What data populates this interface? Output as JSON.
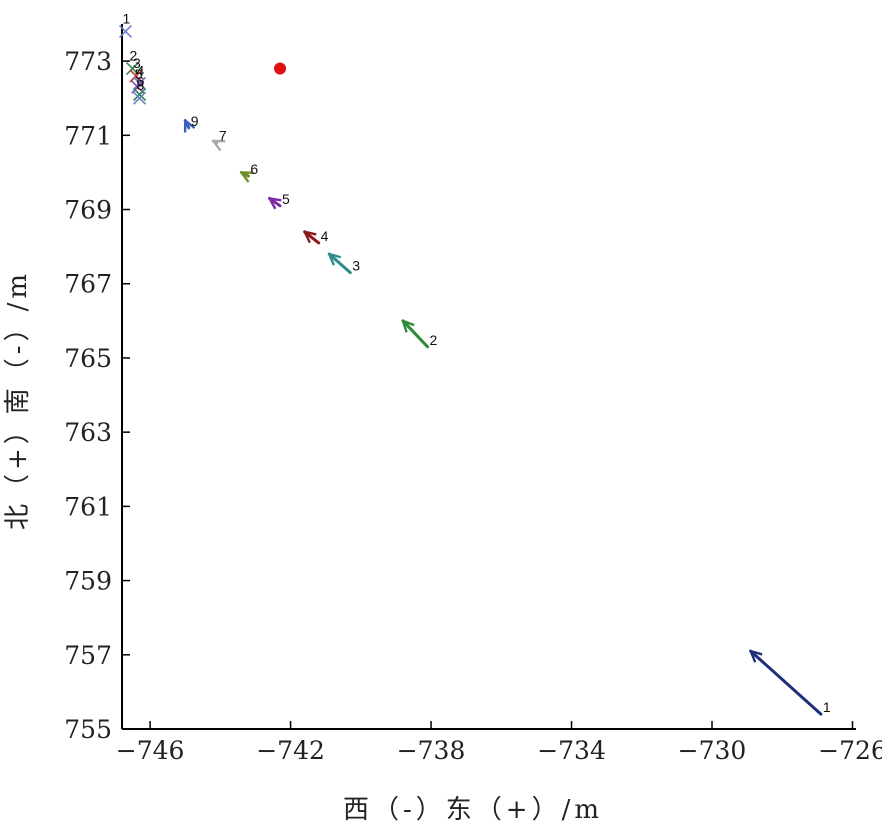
{
  "chart_data": {
    "type": "scatter",
    "xlabel": "西（-）东（+）/m",
    "ylabel": "北（+）南（-）/m",
    "xlim": [
      -746.8,
      -725.9
    ],
    "ylim": [
      755,
      774
    ],
    "xticks": [
      -746,
      -742,
      -738,
      -734,
      -730,
      -726
    ],
    "yticks": [
      755,
      757,
      759,
      761,
      763,
      765,
      767,
      769,
      771,
      773
    ],
    "grid": false,
    "reference_point": {
      "x": -742.3,
      "y": 772.8,
      "color": "#e01010"
    },
    "markers": [
      {
        "label": "1",
        "x": -746.7,
        "y": 773.8,
        "color": "#6f7fc8"
      },
      {
        "label": "2",
        "x": -746.5,
        "y": 772.8,
        "color": "#2e8b57"
      },
      {
        "label": "3",
        "x": -746.4,
        "y": 772.6,
        "color": "#c0392b"
      },
      {
        "label": "4",
        "x": -746.3,
        "y": 772.4,
        "color": "#6f7fc8"
      },
      {
        "label": "5",
        "x": -746.35,
        "y": 772.3,
        "color": "#8e44ad"
      },
      {
        "label": "6",
        "x": -746.3,
        "y": 772.1,
        "color": "#2e8b57"
      },
      {
        "label": "8",
        "x": -746.3,
        "y": 772.0,
        "color": "#6f7fc8"
      }
    ],
    "vectors": [
      {
        "label": "1",
        "x0": -726.9,
        "y0": 755.4,
        "x1": -728.9,
        "y1": 757.1,
        "color": "#1f2f7a"
      },
      {
        "label": "2",
        "x0": -738.1,
        "y0": 765.3,
        "x1": -738.8,
        "y1": 766.0,
        "color": "#2e8b3a"
      },
      {
        "label": "3",
        "x0": -740.3,
        "y0": 767.3,
        "x1": -740.9,
        "y1": 767.8,
        "color": "#2e8b8b"
      },
      {
        "label": "4",
        "x0": -741.2,
        "y0": 768.1,
        "x1": -741.6,
        "y1": 768.4,
        "color": "#8b1a1a"
      },
      {
        "label": "5",
        "x0": -742.3,
        "y0": 769.1,
        "x1": -742.6,
        "y1": 769.3,
        "color": "#7d2aa8"
      },
      {
        "label": "6",
        "x0": -743.2,
        "y0": 769.9,
        "x1": -743.4,
        "y1": 770.0,
        "color": "#6b8e23"
      },
      {
        "label": "7",
        "x0": -744.1,
        "y0": 770.8,
        "x1": -744.2,
        "y1": 770.85,
        "color": "#aaaaaa"
      },
      {
        "label": "9",
        "x0": -744.9,
        "y0": 771.2,
        "x1": -745.0,
        "y1": 771.4,
        "color": "#3a5fbf"
      }
    ]
  }
}
